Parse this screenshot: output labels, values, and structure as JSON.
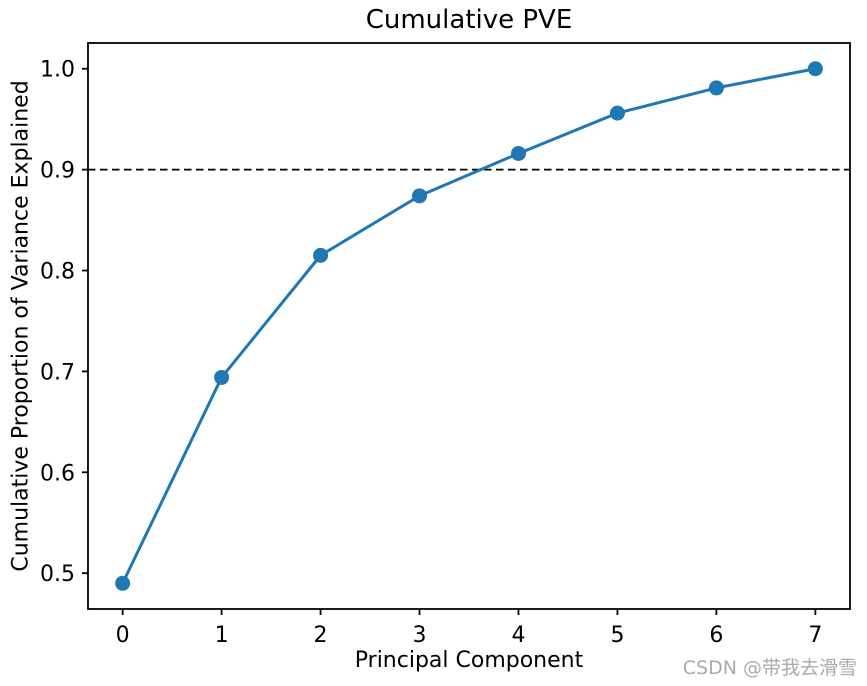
{
  "figure": {
    "watermark": "CSDN @带我去滑雪"
  },
  "chart_data": {
    "type": "line",
    "title": "Cumulative PVE",
    "xlabel": "Principal Component",
    "ylabel": "Cumulative Proportion of Variance Explained",
    "series": [
      {
        "name": "cumulative-pve",
        "x": [
          0,
          1,
          2,
          3,
          4,
          5,
          6,
          7
        ],
        "y": [
          0.49,
          0.694,
          0.815,
          0.874,
          0.916,
          0.956,
          0.981,
          1.0
        ],
        "color": "#1f77b4",
        "marker": "circle",
        "line_width": 3
      }
    ],
    "reference_line": {
      "y": 0.9,
      "style": "dashed",
      "color": "#000000"
    },
    "x_ticks": [
      0,
      1,
      2,
      3,
      4,
      5,
      6,
      7
    ],
    "x_tick_labels": [
      "0",
      "1",
      "2",
      "3",
      "4",
      "5",
      "6",
      "7"
    ],
    "y_ticks": [
      0.5,
      0.6,
      0.7,
      0.8,
      0.9,
      1.0
    ],
    "y_tick_labels": [
      "0.5",
      "0.6",
      "0.7",
      "0.8",
      "0.9",
      "1.0"
    ],
    "xlim": [
      -0.35,
      7.35
    ],
    "ylim": [
      0.4645,
      1.0255
    ],
    "grid": false,
    "legend": null,
    "axis_color": "#000000"
  }
}
